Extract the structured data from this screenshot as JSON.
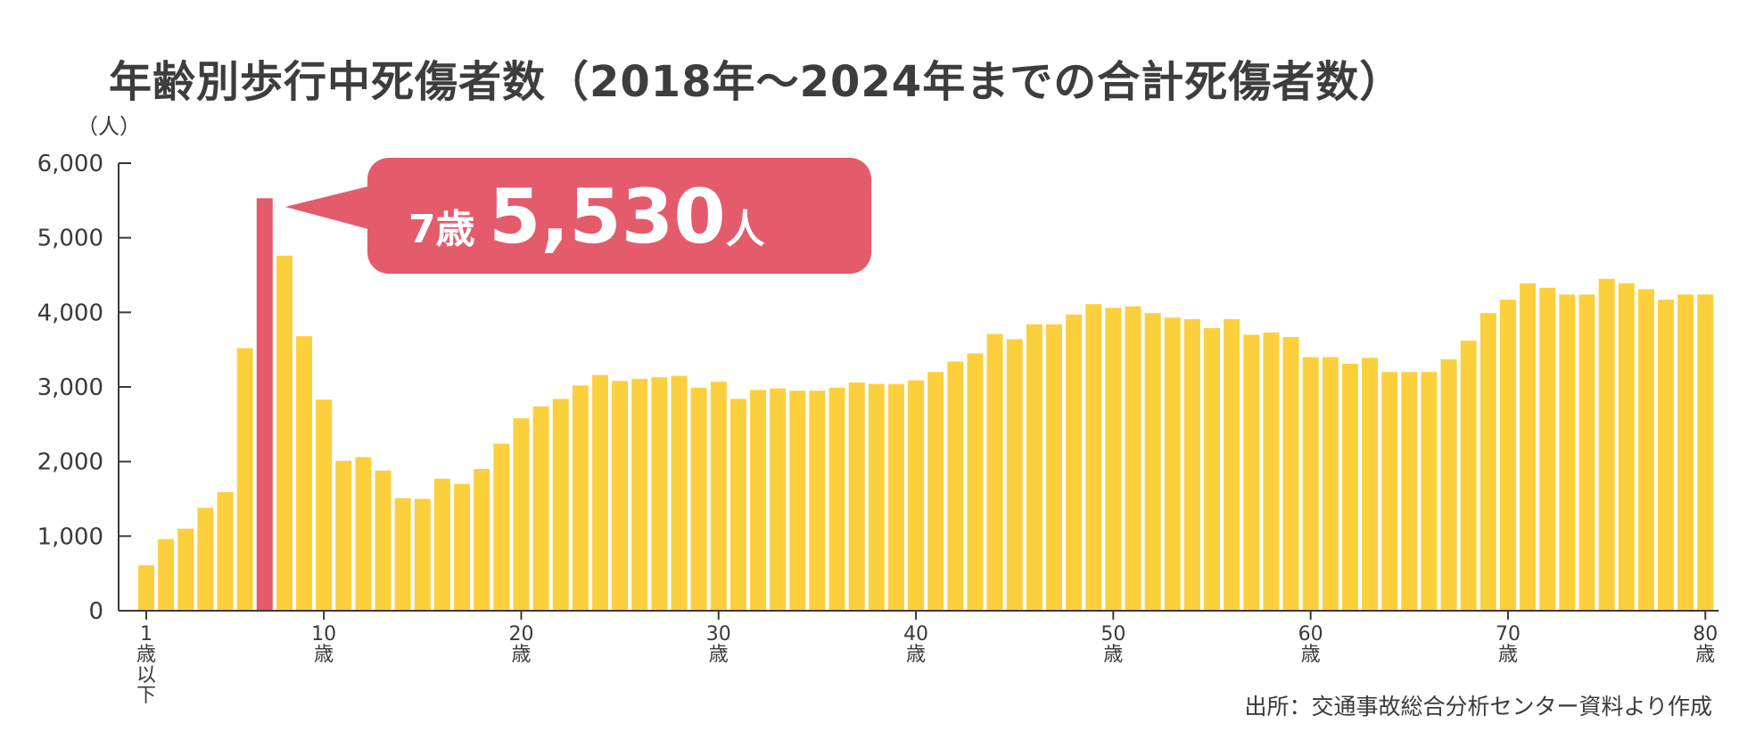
{
  "chart_data": {
    "type": "bar",
    "title": "年齢別歩行中死傷者数（2018年～2024年までの合計死傷者数）",
    "ylabel": "（人）",
    "ylim": [
      0,
      6000
    ],
    "yticks": [
      "0",
      "1,000",
      "2,000",
      "3,000",
      "4,000",
      "5,000",
      "6,000"
    ],
    "xtick_labels": [
      {
        "index": 0,
        "label": "1\n歳\n以\n下"
      },
      {
        "index": 9,
        "label": "10\n歳"
      },
      {
        "index": 19,
        "label": "20\n歳"
      },
      {
        "index": 29,
        "label": "30\n歳"
      },
      {
        "index": 39,
        "label": "40\n歳"
      },
      {
        "index": 49,
        "label": "50\n歳"
      },
      {
        "index": 59,
        "label": "60\n歳"
      },
      {
        "index": 69,
        "label": "70\n歳"
      },
      {
        "index": 79,
        "label": "80\n歳"
      }
    ],
    "values": [
      610,
      960,
      1100,
      1380,
      1590,
      3520,
      5530,
      4760,
      3680,
      2830,
      2010,
      2060,
      1880,
      1510,
      1500,
      1770,
      1700,
      1900,
      2240,
      2580,
      2740,
      2840,
      3020,
      3160,
      3080,
      3110,
      3130,
      3150,
      2990,
      3070,
      2840,
      2960,
      2980,
      2950,
      2950,
      2990,
      3060,
      3040,
      3040,
      3090,
      3200,
      3340,
      3450,
      3710,
      3640,
      3840,
      3840,
      3970,
      4110,
      4060,
      4080,
      3990,
      3930,
      3910,
      3790,
      3910,
      3700,
      3730,
      3670,
      3400,
      3400,
      3310,
      3390,
      3200,
      3200,
      3200,
      3370,
      3620,
      3990,
      4170,
      4390,
      4330,
      4240,
      4240,
      4450,
      4390,
      4310,
      4170,
      4240,
      4240
    ],
    "highlight": {
      "index": 6,
      "age_label": "7歳",
      "value_label": "5,530",
      "unit": "人"
    },
    "colors": {
      "bar": "#FCD03D",
      "highlight": "#E45B6C",
      "axis": "#3a3a3a",
      "callout": "#E45B6C",
      "callout_text": "#ffffff"
    }
  },
  "source": "出所：交通事故総合分析センター資料より作成"
}
